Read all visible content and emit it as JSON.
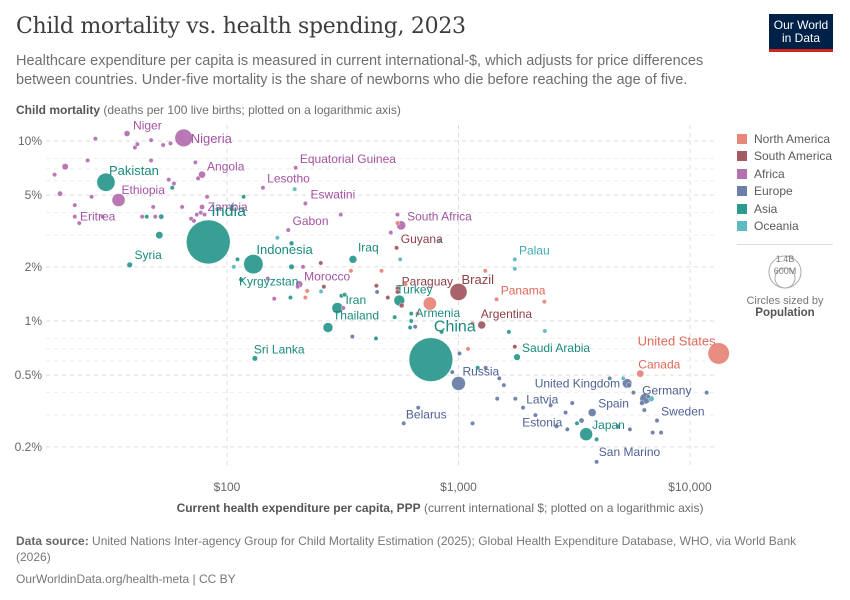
{
  "header": {
    "title": "Child mortality vs. health spending, 2023",
    "subtitle": "Healthcare expenditure per capita is measured in current international-$, which adjusts for price differences between countries. Under-five mortality is the share of newborns who die before reaching the age of five.",
    "logo_line1": "Our World",
    "logo_line2": "in Data"
  },
  "footer": {
    "source_label": "Data source:",
    "source_text": "United Nations Inter-agency Group for Child Mortality Estimation (2025); Global Health Expenditure Database, WHO, via World Bank (2026)",
    "url": "OurWorldinData.org/health-meta | CC BY"
  },
  "legend": {
    "items": [
      {
        "name": "North America",
        "color": "#e6877a"
      },
      {
        "name": "South America",
        "color": "#a35a61"
      },
      {
        "name": "Africa",
        "color": "#b570b0"
      },
      {
        "name": "Europe",
        "color": "#6d7ea8"
      },
      {
        "name": "Asia",
        "color": "#2e9a8f"
      },
      {
        "name": "Oceania",
        "color": "#5fb9c2"
      }
    ],
    "size_big": "1.4B",
    "size_small": "600M",
    "size_caption": "Circles sized by",
    "size_variable": "Population"
  },
  "chart_data": {
    "type": "scatter",
    "title": "Child mortality vs. health spending, 2023",
    "ylabel_bold": "Child mortality",
    "ylabel_rest": " (deaths per 100 live births; plotted on a logarithmic axis)",
    "xlabel_bold": "Current health expenditure per capita, PPP",
    "xlabel_rest": " (current international $; plotted on a logarithmic axis)",
    "xscale": "log",
    "yscale": "log",
    "xlim": [
      48,
      15500
    ],
    "ylim": [
      0.16,
      11.5
    ],
    "x_ticks": [
      {
        "v": 100,
        "label": "$100"
      },
      {
        "v": 1000,
        "label": "$1,000"
      },
      {
        "v": 10000,
        "label": "$10,000"
      }
    ],
    "y_ticks": [
      {
        "v": 10,
        "label": "10%"
      },
      {
        "v": 5,
        "label": "5%"
      },
      {
        "v": 2,
        "label": "2%"
      },
      {
        "v": 1,
        "label": "1%"
      },
      {
        "v": 0.5,
        "label": "0.5%"
      },
      {
        "v": 0.2,
        "label": "0.2%"
      }
    ],
    "minor_y_gridlines": [
      8,
      7,
      6,
      4,
      3,
      0.8,
      0.7,
      0.6,
      0.4,
      0.3
    ],
    "grid": true,
    "legend_position": "right",
    "points": [
      {
        "label": "Nigeria",
        "region": "Africa",
        "x": 65,
        "y": 10.4,
        "pop": 230
      },
      {
        "label": "Niger",
        "region": "Africa",
        "x": 37,
        "y": 11.0,
        "pop": 27
      },
      {
        "label": "Pakistan",
        "region": "Asia",
        "x": 30,
        "y": 5.9,
        "pop": 245
      },
      {
        "label": "Angola",
        "region": "Africa",
        "x": 78,
        "y": 6.5,
        "pop": 37
      },
      {
        "label": "Lesotho",
        "region": "Africa",
        "x": 143,
        "y": 5.5,
        "pop": 2.3
      },
      {
        "label": "Equatorial Guinea",
        "region": "Africa",
        "x": 198,
        "y": 7.1,
        "pop": 1.8
      },
      {
        "label": "Ethiopia",
        "region": "Africa",
        "x": 34,
        "y": 4.7,
        "pop": 128
      },
      {
        "label": "Zambia",
        "region": "Africa",
        "x": 78,
        "y": 4.3,
        "pop": 21
      },
      {
        "label": "Eswatini",
        "region": "Africa",
        "x": 218,
        "y": 4.5,
        "pop": 1.2
      },
      {
        "label": "Eritrea",
        "region": "Africa",
        "x": 22,
        "y": 3.8,
        "pop": 3.7
      },
      {
        "label": "India",
        "region": "Asia",
        "x": 83,
        "y": 2.75,
        "pop": 1430
      },
      {
        "label": "Gabon",
        "region": "Africa",
        "x": 184,
        "y": 3.2,
        "pop": 2.4
      },
      {
        "label": "South Africa",
        "region": "Africa",
        "x": 565,
        "y": 3.4,
        "pop": 63
      },
      {
        "label": "Guyana",
        "region": "South America",
        "x": 540,
        "y": 2.55,
        "pop": 0.8
      },
      {
        "label": "Iraq",
        "region": "Asia",
        "x": 350,
        "y": 2.2,
        "pop": 45
      },
      {
        "label": "Indonesia",
        "region": "Asia",
        "x": 130,
        "y": 2.07,
        "pop": 278
      },
      {
        "label": "Syria",
        "region": "Asia",
        "x": 38,
        "y": 2.05,
        "pop": 23
      },
      {
        "label": "Kyrgyzstan",
        "region": "Asia",
        "x": 115,
        "y": 1.7,
        "pop": 7
      },
      {
        "label": "Morocco",
        "region": "Africa",
        "x": 205,
        "y": 1.6,
        "pop": 37
      },
      {
        "label": "Paraguay",
        "region": "South America",
        "x": 545,
        "y": 1.52,
        "pop": 6.8
      },
      {
        "label": "Brazil",
        "region": "South America",
        "x": 1000,
        "y": 1.45,
        "pop": 216
      },
      {
        "label": "Panama",
        "region": "North America",
        "x": 1460,
        "y": 1.32,
        "pop": 4.5
      },
      {
        "label": "Palau",
        "region": "Oceania",
        "x": 1750,
        "y": 2.2,
        "pop": 0.02
      },
      {
        "label": "Turkey",
        "region": "Asia",
        "x": 555,
        "y": 1.3,
        "pop": 86
      },
      {
        "label": "Iran",
        "region": "Asia",
        "x": 300,
        "y": 1.18,
        "pop": 90
      },
      {
        "label": "Armenia",
        "region": "Asia",
        "x": 625,
        "y": 1.0,
        "pop": 2.8
      },
      {
        "label": "Argentina",
        "region": "South America",
        "x": 1260,
        "y": 0.95,
        "pop": 46
      },
      {
        "label": "Thailand",
        "region": "Asia",
        "x": 273,
        "y": 0.92,
        "pop": 72
      },
      {
        "label": "China",
        "region": "Asia",
        "x": 760,
        "y": 0.61,
        "pop": 1420
      },
      {
        "label": "Sri Lanka",
        "region": "Asia",
        "x": 132,
        "y": 0.62,
        "pop": 22
      },
      {
        "label": "Saudi Arabia",
        "region": "Asia",
        "x": 1790,
        "y": 0.63,
        "pop": 33
      },
      {
        "label": "United States",
        "region": "North America",
        "x": 13300,
        "y": 0.66,
        "pop": 340
      },
      {
        "label": "Canada",
        "region": "North America",
        "x": 6100,
        "y": 0.51,
        "pop": 39
      },
      {
        "label": "Russia",
        "region": "Europe",
        "x": 1000,
        "y": 0.45,
        "pop": 144
      },
      {
        "label": "United Kingdom",
        "region": "Europe",
        "x": 5350,
        "y": 0.45,
        "pop": 68
      },
      {
        "label": "Germany",
        "region": "Europe",
        "x": 6400,
        "y": 0.37,
        "pop": 84
      },
      {
        "label": "Latvia",
        "region": "Europe",
        "x": 1900,
        "y": 0.33,
        "pop": 1.9
      },
      {
        "label": "Spain",
        "region": "Europe",
        "x": 3780,
        "y": 0.31,
        "pop": 48
      },
      {
        "label": "Belarus",
        "region": "Europe",
        "x": 580,
        "y": 0.27,
        "pop": 9.2
      },
      {
        "label": "Japan",
        "region": "Asia",
        "x": 3560,
        "y": 0.235,
        "pop": 124
      },
      {
        "label": "Sweden",
        "region": "Europe",
        "x": 7200,
        "y": 0.28,
        "pop": 10.5
      },
      {
        "label": "Estonia",
        "region": "Europe",
        "x": 2950,
        "y": 0.25,
        "pop": 1.3
      },
      {
        "label": "San Marino",
        "region": "Europe",
        "x": 3950,
        "y": 0.165,
        "pop": 0.03
      }
    ],
    "unlabeled_points": [
      {
        "region": "Africa",
        "x": 27,
        "y": 10.3,
        "pop": 3
      },
      {
        "region": "Africa",
        "x": 47,
        "y": 10.1,
        "pop": 2
      },
      {
        "region": "Africa",
        "x": 41,
        "y": 9.6,
        "pop": 3
      },
      {
        "region": "Africa",
        "x": 40,
        "y": 9.2,
        "pop": 3
      },
      {
        "region": "Africa",
        "x": 53,
        "y": 9.5,
        "pop": 4
      },
      {
        "region": "Africa",
        "x": 57,
        "y": 9.7,
        "pop": 3
      },
      {
        "region": "Africa",
        "x": 25,
        "y": 7.8,
        "pop": 2
      },
      {
        "region": "Africa",
        "x": 20,
        "y": 7.2,
        "pop": 30
      },
      {
        "region": "Africa",
        "x": 47,
        "y": 7.8,
        "pop": 3
      },
      {
        "region": "Africa",
        "x": 73,
        "y": 7.6,
        "pop": 3
      },
      {
        "region": "Africa",
        "x": 18,
        "y": 6.5,
        "pop": 4
      },
      {
        "region": "Africa",
        "x": 56,
        "y": 6.1,
        "pop": 10
      },
      {
        "region": "Africa",
        "x": 75,
        "y": 6.2,
        "pop": 15
      },
      {
        "region": "Asia",
        "x": 58,
        "y": 5.5,
        "pop": 12
      },
      {
        "region": "Africa",
        "x": 59,
        "y": 5.8,
        "pop": 3
      },
      {
        "region": "Africa",
        "x": 19,
        "y": 5.1,
        "pop": 20
      },
      {
        "region": "Africa",
        "x": 26,
        "y": 4.9,
        "pop": 3
      },
      {
        "region": "Africa",
        "x": 82,
        "y": 4.9,
        "pop": 3
      },
      {
        "region": "Asia",
        "x": 118,
        "y": 4.9,
        "pop": 2
      },
      {
        "region": "Africa",
        "x": 22,
        "y": 4.4,
        "pop": 3
      },
      {
        "region": "Africa",
        "x": 48,
        "y": 4.3,
        "pop": 3
      },
      {
        "region": "Africa",
        "x": 64,
        "y": 4.3,
        "pop": 3
      },
      {
        "region": "Africa",
        "x": 77,
        "y": 4.0,
        "pop": 3
      },
      {
        "region": "Africa",
        "x": 29,
        "y": 3.8,
        "pop": 3
      },
      {
        "region": "Africa",
        "x": 43,
        "y": 3.8,
        "pop": 12
      },
      {
        "region": "Asia",
        "x": 45,
        "y": 3.8,
        "pop": 10
      },
      {
        "region": "Africa",
        "x": 49,
        "y": 3.8,
        "pop": 4
      },
      {
        "region": "Asia",
        "x": 52,
        "y": 3.8,
        "pop": 20
      },
      {
        "region": "Africa",
        "x": 70,
        "y": 3.7,
        "pop": 5
      },
      {
        "region": "Africa",
        "x": 72,
        "y": 3.6,
        "pop": 5
      },
      {
        "region": "Africa",
        "x": 74,
        "y": 3.9,
        "pop": 4
      },
      {
        "region": "Africa",
        "x": 23,
        "y": 3.5,
        "pop": 3
      },
      {
        "region": "Africa",
        "x": 80,
        "y": 3.9,
        "pop": 6
      },
      {
        "region": "Asia",
        "x": 51,
        "y": 3.0,
        "pop": 40
      },
      {
        "region": "Oceania",
        "x": 196,
        "y": 5.4,
        "pop": 0.3
      },
      {
        "region": "Africa",
        "x": 310,
        "y": 3.9,
        "pop": 2
      },
      {
        "region": "Africa",
        "x": 545,
        "y": 3.9,
        "pop": 2
      },
      {
        "region": "North America",
        "x": 545,
        "y": 3.5,
        "pop": 1
      },
      {
        "region": "Africa",
        "x": 510,
        "y": 3.1,
        "pop": 2
      },
      {
        "region": "Oceania",
        "x": 830,
        "y": 2.8,
        "pop": 0.2
      },
      {
        "region": "Oceania",
        "x": 560,
        "y": 2.2,
        "pop": 0.5
      },
      {
        "region": "Asia",
        "x": 190,
        "y": 2.7,
        "pop": 17
      },
      {
        "region": "Oceania",
        "x": 165,
        "y": 2.9,
        "pop": 0.5
      },
      {
        "region": "Asia",
        "x": 111,
        "y": 2.2,
        "pop": 2
      },
      {
        "region": "Oceania",
        "x": 107,
        "y": 2.0,
        "pop": 1
      },
      {
        "region": "Africa",
        "x": 213,
        "y": 2.0,
        "pop": 8
      },
      {
        "region": "South America",
        "x": 254,
        "y": 2.1,
        "pop": 3
      },
      {
        "region": "North America",
        "x": 343,
        "y": 1.9,
        "pop": 2
      },
      {
        "region": "Asia",
        "x": 190,
        "y": 2.0,
        "pop": 22
      },
      {
        "region": "Africa",
        "x": 150,
        "y": 1.72,
        "pop": 6
      },
      {
        "region": "Africa",
        "x": 202,
        "y": 1.55,
        "pop": 2
      },
      {
        "region": "North America",
        "x": 222,
        "y": 1.47,
        "pop": 2
      },
      {
        "region": "South America",
        "x": 262,
        "y": 1.55,
        "pop": 2
      },
      {
        "region": "Oceania",
        "x": 255,
        "y": 1.46,
        "pop": 1
      },
      {
        "region": "Africa",
        "x": 160,
        "y": 1.33,
        "pop": 2
      },
      {
        "region": "Asia",
        "x": 188,
        "y": 1.35,
        "pop": 4
      },
      {
        "region": "North America",
        "x": 218,
        "y": 1.35,
        "pop": 2
      },
      {
        "region": "Africa",
        "x": 318,
        "y": 1.18,
        "pop": 3
      },
      {
        "region": "Asia",
        "x": 312,
        "y": 1.38,
        "pop": 2
      },
      {
        "region": "Asia",
        "x": 322,
        "y": 1.4,
        "pop": 2
      },
      {
        "region": "South America",
        "x": 442,
        "y": 1.57,
        "pop": 4
      },
      {
        "region": "Europe",
        "x": 445,
        "y": 1.45,
        "pop": 2
      },
      {
        "region": "North America",
        "x": 465,
        "y": 1.9,
        "pop": 2
      },
      {
        "region": "South America",
        "x": 495,
        "y": 1.35,
        "pop": 2
      },
      {
        "region": "South America",
        "x": 545,
        "y": 1.45,
        "pop": 3
      },
      {
        "region": "South America",
        "x": 568,
        "y": 1.22,
        "pop": 18
      },
      {
        "region": "North America",
        "x": 590,
        "y": 1.6,
        "pop": 2
      },
      {
        "region": "North America",
        "x": 752,
        "y": 1.25,
        "pop": 130
      },
      {
        "region": "Asia",
        "x": 530,
        "y": 1.05,
        "pop": 3
      },
      {
        "region": "Asia",
        "x": 618,
        "y": 0.92,
        "pop": 2
      },
      {
        "region": "Europe",
        "x": 650,
        "y": 0.93,
        "pop": 3
      },
      {
        "region": "North America",
        "x": 665,
        "y": 1.1,
        "pop": 2
      },
      {
        "region": "Asia",
        "x": 625,
        "y": 1.1,
        "pop": 2
      },
      {
        "region": "Europe",
        "x": 348,
        "y": 0.82,
        "pop": 8
      },
      {
        "region": "Asia",
        "x": 440,
        "y": 0.8,
        "pop": 6
      },
      {
        "region": "Asia",
        "x": 845,
        "y": 0.87,
        "pop": 2
      },
      {
        "region": "North America",
        "x": 1150,
        "y": 0.97,
        "pop": 2
      },
      {
        "region": "North America",
        "x": 1305,
        "y": 1.9,
        "pop": 2
      },
      {
        "region": "Oceania",
        "x": 1750,
        "y": 1.95,
        "pop": 0.1
      },
      {
        "region": "North America",
        "x": 2350,
        "y": 1.28,
        "pop": 2
      },
      {
        "region": "Asia",
        "x": 1650,
        "y": 0.87,
        "pop": 3
      },
      {
        "region": "Oceania",
        "x": 2360,
        "y": 0.88,
        "pop": 0.5
      },
      {
        "region": "North America",
        "x": 1100,
        "y": 0.7,
        "pop": 3
      },
      {
        "region": "Europe",
        "x": 1010,
        "y": 0.66,
        "pop": 3
      },
      {
        "region": "Asia",
        "x": 1210,
        "y": 0.55,
        "pop": 3
      },
      {
        "region": "Europe",
        "x": 1310,
        "y": 0.55,
        "pop": 3
      },
      {
        "region": "South America",
        "x": 1750,
        "y": 0.72,
        "pop": 2
      },
      {
        "region": "Europe",
        "x": 940,
        "y": 0.52,
        "pop": 2
      },
      {
        "region": "Europe",
        "x": 1500,
        "y": 0.48,
        "pop": 5
      },
      {
        "region": "Europe",
        "x": 1570,
        "y": 0.44,
        "pop": 10
      },
      {
        "region": "Europe",
        "x": 1470,
        "y": 0.37,
        "pop": 2
      },
      {
        "region": "Europe",
        "x": 1760,
        "y": 0.37,
        "pop": 2
      },
      {
        "region": "Europe",
        "x": 670,
        "y": 0.33,
        "pop": 2
      },
      {
        "region": "Europe",
        "x": 1150,
        "y": 0.27,
        "pop": 2
      },
      {
        "region": "Europe",
        "x": 2500,
        "y": 0.34,
        "pop": 2
      },
      {
        "region": "Europe",
        "x": 2150,
        "y": 0.3,
        "pop": 2
      },
      {
        "region": "Europe",
        "x": 3100,
        "y": 0.35,
        "pop": 3
      },
      {
        "region": "Europe",
        "x": 2900,
        "y": 0.31,
        "pop": 3
      },
      {
        "region": "Asia",
        "x": 3250,
        "y": 0.27,
        "pop": 12
      },
      {
        "region": "Europe",
        "x": 3400,
        "y": 0.28,
        "pop": 20
      },
      {
        "region": "Europe",
        "x": 2650,
        "y": 0.26,
        "pop": 2
      },
      {
        "region": "Asia",
        "x": 3950,
        "y": 0.22,
        "pop": 4
      },
      {
        "region": "Europe",
        "x": 4900,
        "y": 0.26,
        "pop": 2
      },
      {
        "region": "Europe",
        "x": 5500,
        "y": 0.25,
        "pop": 2
      },
      {
        "region": "Europe",
        "x": 6900,
        "y": 0.24,
        "pop": 2
      },
      {
        "region": "Europe",
        "x": 7500,
        "y": 0.24,
        "pop": 2
      },
      {
        "region": "Europe",
        "x": 6350,
        "y": 0.32,
        "pop": 3
      },
      {
        "region": "Europe",
        "x": 5700,
        "y": 0.4,
        "pop": 10
      },
      {
        "region": "Europe",
        "x": 5450,
        "y": 0.44,
        "pop": 20
      },
      {
        "region": "Oceania",
        "x": 5150,
        "y": 0.48,
        "pop": 1
      },
      {
        "region": "Oceania",
        "x": 6800,
        "y": 0.37,
        "pop": 26
      },
      {
        "region": "Europe",
        "x": 6200,
        "y": 0.35,
        "pop": 17
      },
      {
        "region": "Europe",
        "x": 6600,
        "y": 0.38,
        "pop": 6
      },
      {
        "region": "Europe",
        "x": 11800,
        "y": 0.4,
        "pop": 5
      },
      {
        "region": "Europe",
        "x": 4500,
        "y": 0.48,
        "pop": 2
      }
    ]
  }
}
